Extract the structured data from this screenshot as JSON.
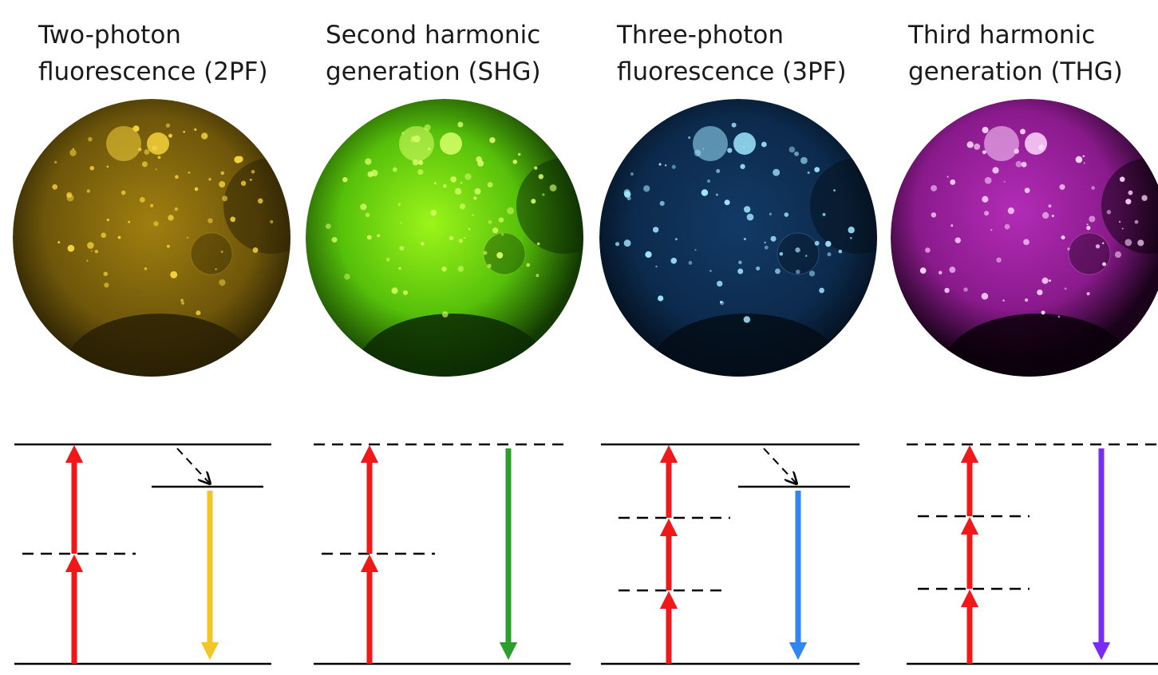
{
  "panels": [
    {
      "title_lines": [
        "Two-photon",
        "fluorescence (2PF)"
      ]
    },
    {
      "title_lines": [
        "Second harmonic",
        "generation (SHG)"
      ]
    },
    {
      "title_lines": [
        "Three-photon",
        "fluorescence (3PF)"
      ]
    },
    {
      "title_lines": [
        "Third harmonic",
        "generation (THG)"
      ]
    }
  ]
}
